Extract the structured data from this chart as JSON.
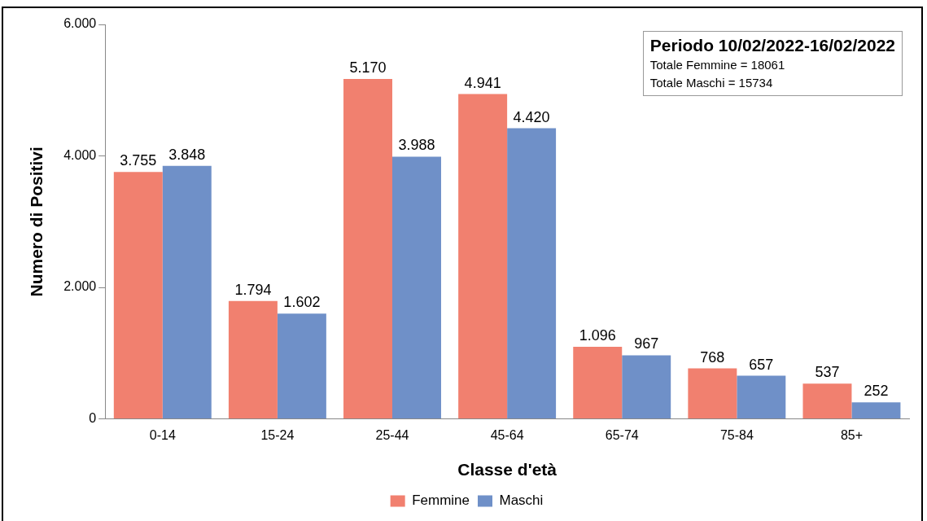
{
  "chart_data": {
    "type": "bar",
    "xlabel": "Classe d'età",
    "ylabel": "Numero di Positivi",
    "annotations": [
      "Periodo 10/02/2022-16/02/2022",
      "Totale Femmine = 18061",
      "Totale Maschi = 15734"
    ],
    "categories": [
      "0-14",
      "15-24",
      "25-44",
      "45-64",
      "65-74",
      "75-84",
      "85+"
    ],
    "series": [
      {
        "name": "Femmine",
        "color": "#f1806f",
        "values": [
          3755,
          1794,
          5170,
          4941,
          1096,
          768,
          537
        ],
        "value_labels": [
          "3.755",
          "1.794",
          "5.170",
          "4.941",
          "1.096",
          "768",
          "537"
        ]
      },
      {
        "name": "Maschi",
        "color": "#6f90c8",
        "values": [
          3848,
          1602,
          3988,
          4420,
          967,
          657,
          252
        ],
        "value_labels": [
          "3.848",
          "1.602",
          "3.988",
          "4.420",
          "967",
          "657",
          "252"
        ]
      }
    ],
    "ylim": [
      0,
      6000
    ],
    "yticks": [
      0,
      {
        "value": 2000,
        "label": "2.000"
      },
      {
        "value": 4000,
        "label": "4.000"
      },
      {
        "value": 6000,
        "label": "6.000"
      }
    ],
    "grid": false,
    "legend": "bottom"
  }
}
